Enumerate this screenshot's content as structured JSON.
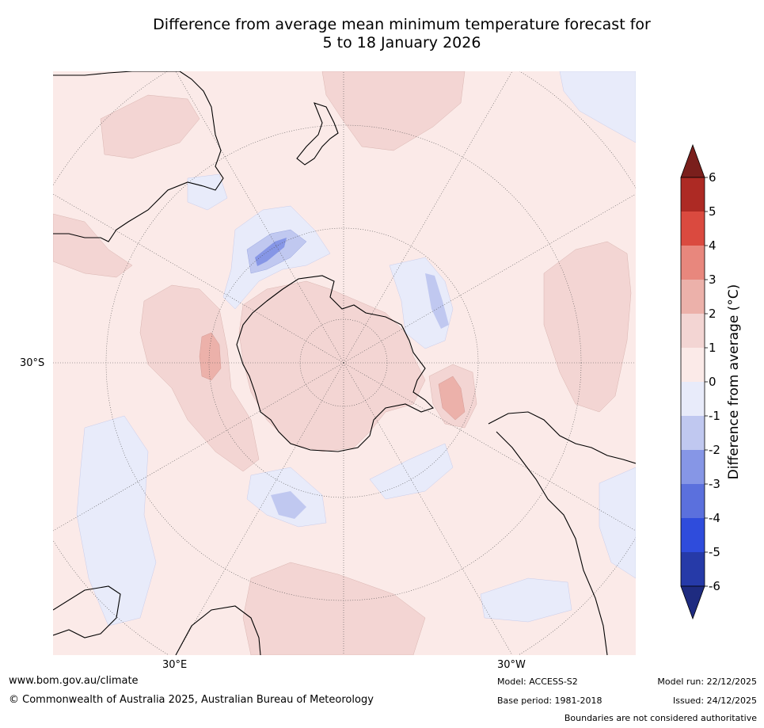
{
  "title": {
    "line1": "Difference from average mean minimum temperature forecast for",
    "line2": "5 to 18 January 2026"
  },
  "map": {
    "projection": "south-polar-stereographic",
    "lat_label_30s": "30°S",
    "lon_label_30e": "30°E",
    "lon_label_30w": "30°W",
    "colors": {
      "ocean_background": "#fbeae8",
      "warm_1_2": "#f3d5d3",
      "warm_2_3": "#ecb1aa",
      "cool_0_m1": "#e8ebfa",
      "cool_m1_m2": "#c0c8f0",
      "cool_m2_m3": "#8696e6",
      "coastline": "#000000",
      "gridline": "#555555"
    }
  },
  "colorbar": {
    "label": "Difference from average (°C)",
    "tick_labels": [
      "6",
      "5",
      "4",
      "3",
      "2",
      "1",
      "0",
      "-1",
      "-2",
      "-3",
      "-4",
      "-5",
      "-6"
    ],
    "levels": [
      {
        "range": "above 6",
        "color": "#7a1f1c"
      },
      {
        "range": "5 to 6",
        "color": "#ad2a24"
      },
      {
        "range": "4 to 5",
        "color": "#da4a3f"
      },
      {
        "range": "3 to 4",
        "color": "#e8877d"
      },
      {
        "range": "2 to 3",
        "color": "#ecb1aa"
      },
      {
        "range": "1 to 2",
        "color": "#f3d5d3"
      },
      {
        "range": "0 to 1",
        "color": "#fbeae8"
      },
      {
        "range": "-1 to 0",
        "color": "#e8ebfa"
      },
      {
        "range": "-2 to -1",
        "color": "#c0c8f0"
      },
      {
        "range": "-3 to -2",
        "color": "#8696e6"
      },
      {
        "range": "-4 to -3",
        "color": "#5b70dd"
      },
      {
        "range": "-5 to -4",
        "color": "#2f4cdc"
      },
      {
        "range": "-6 to -5",
        "color": "#263aa8"
      },
      {
        "range": "below -6",
        "color": "#1e2b80"
      }
    ]
  },
  "footer": {
    "website": "www.bom.gov.au/climate",
    "copyright": "© Commonwealth of Australia 2025, Australian Bureau of Meteorology",
    "model": "Model: ACCESS-S2",
    "base_period": "Base period: 1981-2018",
    "model_run": "Model run: 22/12/2025",
    "issued": "Issued: 24/12/2025",
    "disclaimer": "Boundaries are not considered authoritative"
  }
}
